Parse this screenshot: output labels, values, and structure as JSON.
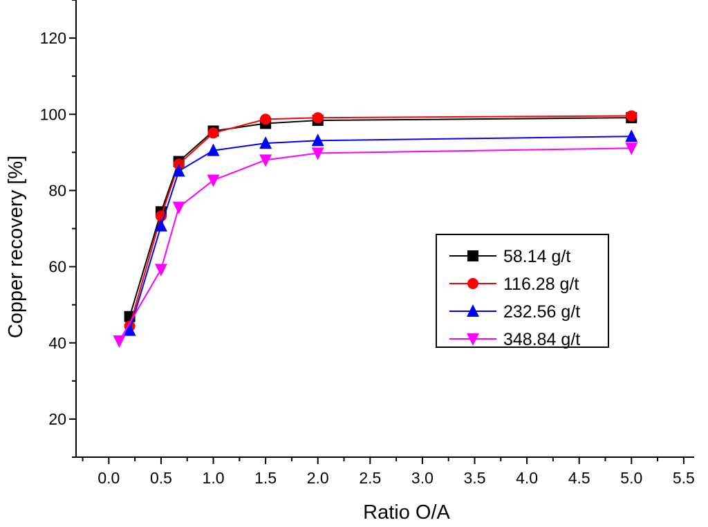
{
  "chart_data": {
    "type": "line",
    "title": "",
    "xlabel": "Ratio O/A",
    "ylabel": "Copper recovery [%]",
    "xlim": [
      -0.3,
      5.6
    ],
    "ylim": [
      10,
      130
    ],
    "xticks": [
      "0.0",
      "0.5",
      "1.0",
      "1.5",
      "2.0",
      "2.5",
      "3.0",
      "3.5",
      "4.0",
      "4.5",
      "5.0",
      "5.5"
    ],
    "yticks": [
      "20",
      "40",
      "60",
      "80",
      "100",
      "120"
    ],
    "grid": false,
    "legend_position": "center-right",
    "series": [
      {
        "name": "58.14 g/t",
        "color": "#000000",
        "marker": "square",
        "x": [
          0.2,
          0.5,
          0.67,
          1.0,
          1.5,
          2.0,
          5.0
        ],
        "y": [
          46.9,
          74.4,
          87.6,
          95.6,
          97.6,
          98.4,
          99.1
        ]
      },
      {
        "name": "116.28 g/t",
        "color": "#ff0000",
        "marker": "circle",
        "x": [
          0.2,
          0.5,
          0.67,
          1.0,
          1.5,
          2.0,
          5.0
        ],
        "y": [
          44.4,
          73.3,
          86.9,
          95.1,
          98.7,
          99.1,
          99.6
        ]
      },
      {
        "name": "232.56 g/t",
        "color": "#0000ff",
        "marker": "triangle-up",
        "x": [
          0.2,
          0.5,
          0.67,
          1.0,
          1.5,
          2.0,
          5.0
        ],
        "y": [
          43.3,
          70.7,
          85.1,
          90.5,
          92.4,
          93.1,
          94.2
        ]
      },
      {
        "name": "348.84 g/t",
        "color": "#ff00ff",
        "marker": "triangle-down",
        "x": [
          0.1,
          0.5,
          0.67,
          1.0,
          1.5,
          2.0,
          5.0
        ],
        "y": [
          40.5,
          59.3,
          75.6,
          82.7,
          88.0,
          89.8,
          91.1
        ]
      }
    ]
  }
}
